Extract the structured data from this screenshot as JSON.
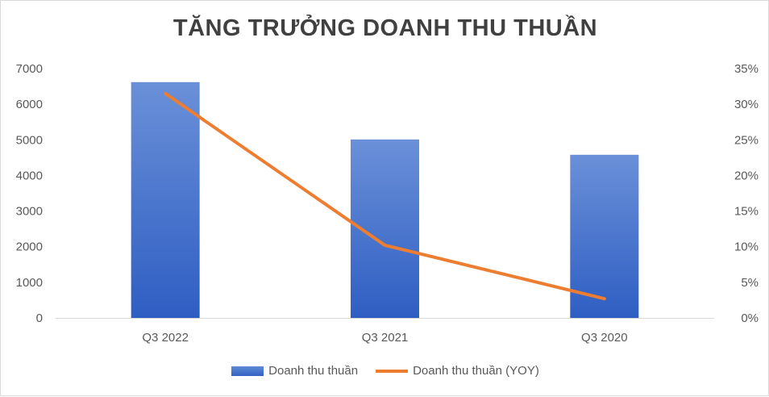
{
  "chart_data": {
    "type": "bar",
    "title": "TĂNG TRƯỞNG DOANH THU THUẦN",
    "categories": [
      "Q3 2022",
      "Q3 2021",
      "Q3 2020"
    ],
    "series": [
      {
        "name": "Doanh thu thuần",
        "type": "bar",
        "axis": "left",
        "values": [
          6620,
          5010,
          4580
        ],
        "color": "#4472c4"
      },
      {
        "name": "Doanh thu thuần (YOY)",
        "type": "line",
        "axis": "right",
        "values": [
          31.5,
          10.2,
          2.7
        ],
        "color": "#ed7d31"
      }
    ],
    "y_left": {
      "ylim": [
        0,
        7000
      ],
      "ticks": [
        "0",
        "1000",
        "2000",
        "3000",
        "4000",
        "5000",
        "6000",
        "7000"
      ]
    },
    "y_right": {
      "ylim": [
        0,
        35
      ],
      "ticks": [
        "0%",
        "5%",
        "10%",
        "15%",
        "20%",
        "25%",
        "30%",
        "35%"
      ]
    },
    "grid": false,
    "legend": "bottom"
  }
}
